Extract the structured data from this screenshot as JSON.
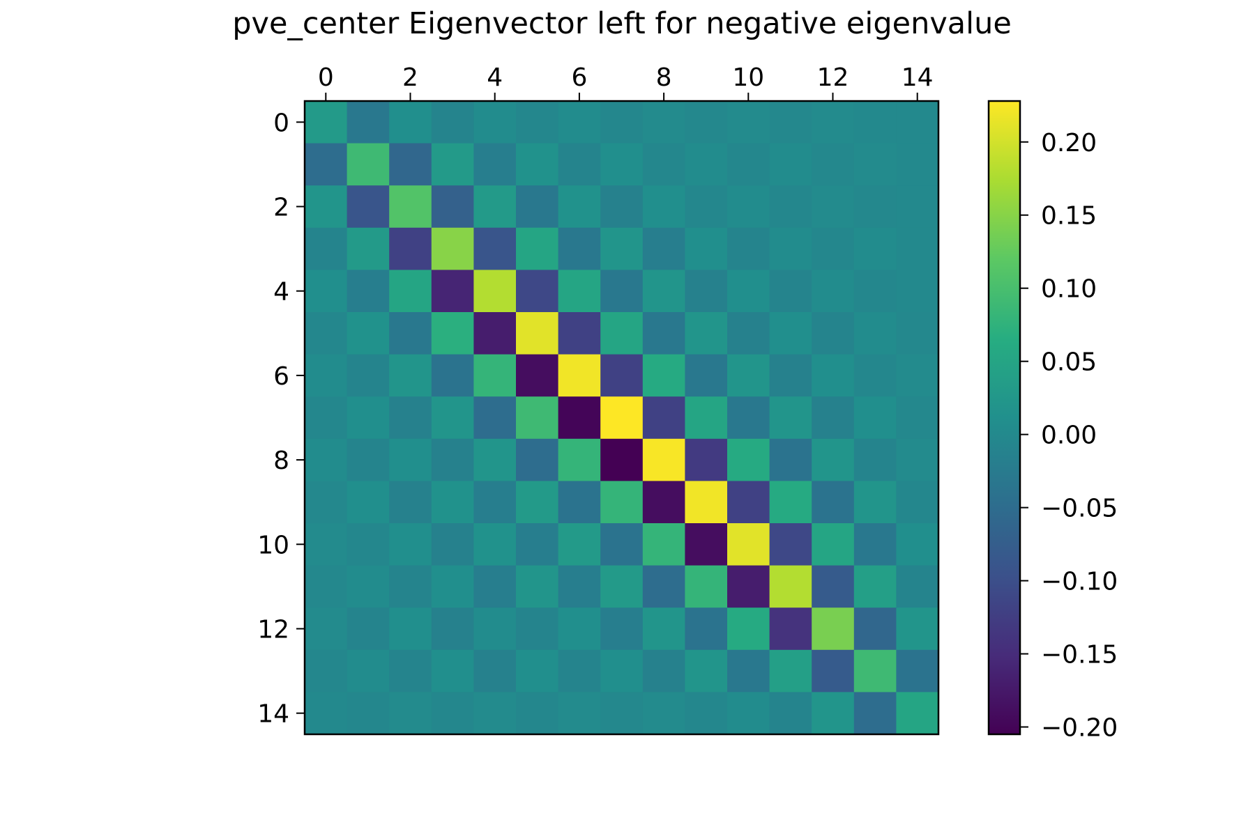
{
  "chart_data": {
    "type": "heatmap",
    "title": "pve_center Eigenvector left for negative eigenvalue",
    "x_ticks": [
      "0",
      "2",
      "4",
      "6",
      "8",
      "10",
      "12",
      "14"
    ],
    "y_ticks": [
      "0",
      "2",
      "4",
      "6",
      "8",
      "10",
      "12",
      "14"
    ],
    "x_tick_position": "top",
    "rows": 15,
    "cols": 15,
    "colormap": "viridis",
    "vmin": -0.205,
    "vmax": 0.228,
    "colorbar": {
      "ticks": [
        {
          "value": 0.2,
          "label": "0.20"
        },
        {
          "value": 0.15,
          "label": "0.15"
        },
        {
          "value": 0.1,
          "label": "0.10"
        },
        {
          "value": 0.05,
          "label": "0.05"
        },
        {
          "value": 0.0,
          "label": "0.00"
        },
        {
          "value": -0.05,
          "label": "−0.05"
        },
        {
          "value": -0.1,
          "label": "−0.10"
        },
        {
          "value": -0.15,
          "label": "−0.15"
        },
        {
          "value": -0.2,
          "label": "−0.20"
        }
      ]
    },
    "values": [
      [
        0.03,
        -0.03,
        0.01,
        -0.01,
        0.005,
        -0.005,
        0.005,
        -0.005,
        0.002,
        -0.002,
        0.002,
        -0.002,
        0.002,
        0.0,
        0.0
      ],
      [
        -0.05,
        0.09,
        -0.06,
        0.03,
        -0.02,
        0.015,
        -0.01,
        0.01,
        -0.005,
        0.005,
        -0.005,
        0.005,
        -0.002,
        0.002,
        0.0
      ],
      [
        0.02,
        -0.09,
        0.11,
        -0.07,
        0.03,
        -0.03,
        0.015,
        -0.015,
        0.01,
        -0.005,
        0.005,
        -0.005,
        0.002,
        -0.002,
        0.0
      ],
      [
        -0.01,
        0.03,
        -0.12,
        0.15,
        -0.09,
        0.05,
        -0.03,
        0.02,
        -0.02,
        0.01,
        -0.01,
        0.005,
        -0.005,
        0.005,
        0.0
      ],
      [
        0.01,
        -0.02,
        0.05,
        -0.16,
        0.18,
        -0.11,
        0.05,
        -0.03,
        0.02,
        -0.015,
        0.01,
        -0.01,
        0.005,
        -0.005,
        0.0
      ],
      [
        -0.005,
        0.015,
        -0.03,
        0.07,
        -0.17,
        0.21,
        -0.12,
        0.05,
        -0.03,
        0.02,
        -0.015,
        0.01,
        -0.01,
        0.005,
        -0.002
      ],
      [
        0.005,
        -0.01,
        0.02,
        -0.04,
        0.08,
        -0.19,
        0.22,
        -0.12,
        0.06,
        -0.03,
        0.02,
        -0.015,
        0.01,
        -0.005,
        0.002
      ],
      [
        -0.005,
        0.01,
        -0.015,
        0.02,
        -0.05,
        0.09,
        -0.2,
        0.23,
        -0.12,
        0.05,
        -0.03,
        0.02,
        -0.015,
        0.01,
        -0.002
      ],
      [
        0.005,
        -0.01,
        0.01,
        -0.015,
        0.02,
        -0.05,
        0.08,
        -0.205,
        0.225,
        -0.13,
        0.06,
        -0.04,
        0.02,
        -0.01,
        0.002
      ],
      [
        -0.002,
        0.01,
        -0.015,
        0.015,
        -0.02,
        0.03,
        -0.04,
        0.08,
        -0.19,
        0.22,
        -0.12,
        0.06,
        -0.04,
        0.02,
        -0.005
      ],
      [
        0.002,
        -0.005,
        0.01,
        -0.015,
        0.015,
        -0.02,
        0.03,
        -0.04,
        0.08,
        -0.19,
        0.21,
        -0.11,
        0.05,
        -0.03,
        0.01
      ],
      [
        -0.002,
        0.005,
        -0.01,
        0.01,
        -0.02,
        0.02,
        -0.02,
        0.03,
        -0.05,
        0.08,
        -0.17,
        0.18,
        -0.08,
        0.04,
        -0.01
      ],
      [
        0.002,
        -0.01,
        0.01,
        -0.015,
        0.005,
        -0.01,
        0.01,
        -0.02,
        0.02,
        -0.04,
        0.06,
        -0.14,
        0.14,
        -0.06,
        0.02
      ],
      [
        -0.005,
        0.005,
        -0.01,
        0.01,
        -0.015,
        0.01,
        -0.01,
        0.01,
        -0.015,
        0.02,
        -0.03,
        0.04,
        -0.08,
        0.09,
        -0.04
      ],
      [
        0.0,
        -0.005,
        0.002,
        -0.005,
        0.002,
        -0.005,
        0.002,
        -0.002,
        0.002,
        -0.005,
        0.005,
        -0.01,
        0.02,
        -0.05,
        0.05
      ]
    ]
  }
}
